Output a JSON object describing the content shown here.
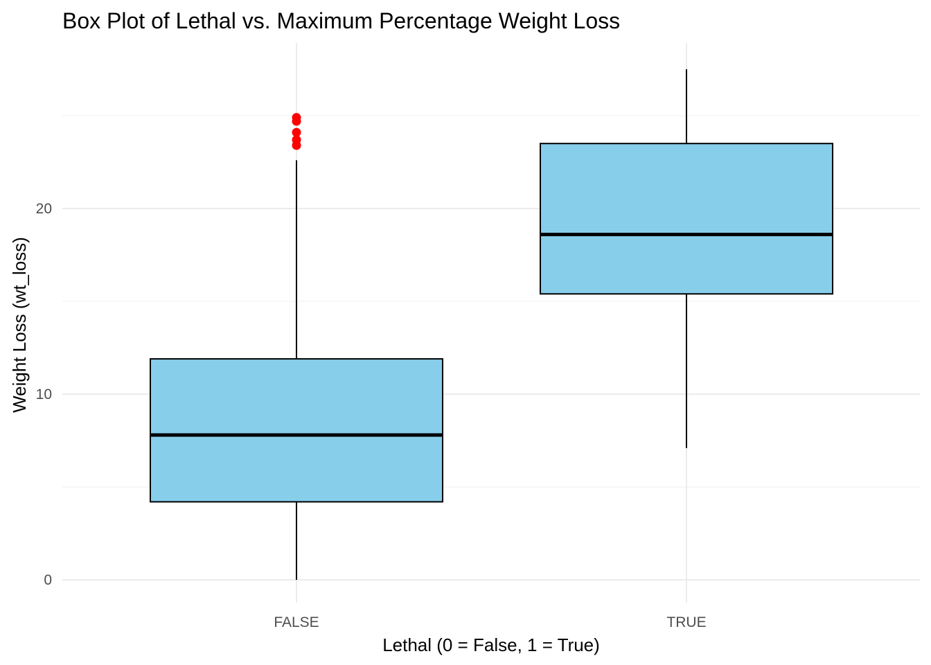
{
  "chart_data": {
    "type": "box",
    "title": "Box Plot of Lethal vs. Maximum Percentage Weight Loss",
    "xlabel": "Lethal (0 = False, 1 = True)",
    "ylabel": "Weight Loss (wt_loss)",
    "categories": [
      "FALSE",
      "TRUE"
    ],
    "y_ticks": [
      0,
      10,
      20
    ],
    "y_tick_labels": [
      "0",
      "10",
      "20"
    ],
    "ylim": [
      -1.2,
      28.1
    ],
    "grid": true,
    "boxes": [
      {
        "category": "FALSE",
        "whisker_low": 0.0,
        "q1": 4.2,
        "median": 7.8,
        "q3": 11.9,
        "whisker_high": 22.6,
        "outliers": [
          23.4,
          23.7,
          24.1,
          24.7,
          24.9
        ]
      },
      {
        "category": "TRUE",
        "whisker_low": 7.1,
        "q1": 15.4,
        "median": 18.6,
        "q3": 23.5,
        "whisker_high": 27.5,
        "outliers": []
      }
    ],
    "colors": {
      "box_fill": "#87CEEB",
      "box_outline": "#000000",
      "outlier": "#FF0000",
      "grid": "#EBEBEB"
    }
  }
}
